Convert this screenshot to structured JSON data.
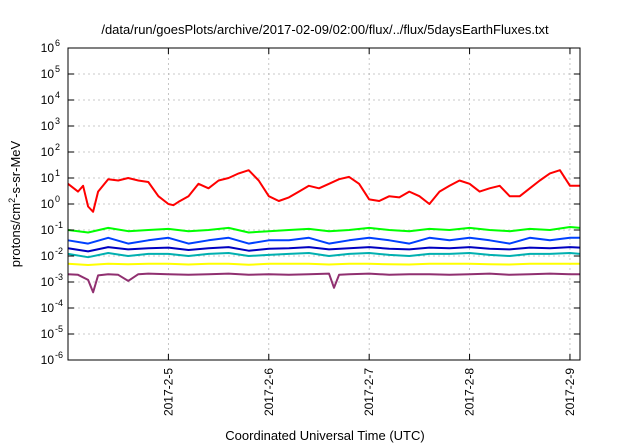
{
  "chart_data": {
    "type": "line",
    "title": "/data/run/goesPlots/archive/2017-02-09/02:00/flux/../flux/5daysEarthFluxes.txt",
    "xlabel": "Coordinated Universal Time (UTC)",
    "ylabel": "protons/cm²-s-sr-MeV",
    "y_scale": "log",
    "ylim": [
      1e-06,
      1000000.0
    ],
    "xlim": [
      4.0,
      9.1
    ],
    "grid": true,
    "legend": "none",
    "y_ticks": [
      {
        "value": 1e-06,
        "base": "10",
        "exp": "-6"
      },
      {
        "value": 1e-05,
        "base": "10",
        "exp": "-5"
      },
      {
        "value": 0.0001,
        "base": "10",
        "exp": "-4"
      },
      {
        "value": 0.001,
        "base": "10",
        "exp": "-3"
      },
      {
        "value": 0.01,
        "base": "10",
        "exp": "-2"
      },
      {
        "value": 0.1,
        "base": "10",
        "exp": "-1"
      },
      {
        "value": 1.0,
        "base": "10",
        "exp": "0"
      },
      {
        "value": 10.0,
        "base": "10",
        "exp": "1"
      },
      {
        "value": 100.0,
        "base": "10",
        "exp": "2"
      },
      {
        "value": 1000.0,
        "base": "10",
        "exp": "3"
      },
      {
        "value": 10000.0,
        "base": "10",
        "exp": "4"
      },
      {
        "value": 100000.0,
        "base": "10",
        "exp": "5"
      },
      {
        "value": 1000000.0,
        "base": "10",
        "exp": "6"
      }
    ],
    "x_ticks": [
      {
        "value": 5,
        "label": "2017-2-5"
      },
      {
        "value": 6,
        "label": "2017-2-6"
      },
      {
        "value": 7,
        "label": "2017-2-7"
      },
      {
        "value": 8,
        "label": "2017-2-8"
      },
      {
        "value": 9,
        "label": "2017-2-9"
      }
    ],
    "series": [
      {
        "color": "#ff0000",
        "x": [
          4.0,
          4.1,
          4.15,
          4.2,
          4.25,
          4.3,
          4.4,
          4.5,
          4.6,
          4.7,
          4.8,
          4.9,
          5.0,
          5.05,
          5.1,
          5.2,
          5.3,
          5.4,
          5.5,
          5.6,
          5.7,
          5.8,
          5.9,
          6.0,
          6.1,
          6.2,
          6.3,
          6.4,
          6.5,
          6.6,
          6.7,
          6.8,
          6.9,
          7.0,
          7.1,
          7.2,
          7.3,
          7.4,
          7.5,
          7.6,
          7.7,
          7.8,
          7.9,
          8.0,
          8.1,
          8.2,
          8.3,
          8.4,
          8.5,
          8.6,
          8.7,
          8.8,
          8.9,
          9.0,
          9.1
        ],
        "y": [
          6,
          3,
          5,
          0.8,
          0.5,
          3,
          9,
          8,
          10,
          8,
          7,
          2,
          1,
          0.9,
          1.2,
          2,
          6,
          4,
          8,
          10,
          15,
          20,
          8,
          2,
          1.3,
          1.8,
          3,
          5,
          4,
          6,
          9,
          11,
          6,
          1.5,
          1.3,
          2,
          1.8,
          3,
          2,
          1,
          3,
          5,
          8,
          6,
          3,
          4,
          5,
          2,
          2,
          4,
          8,
          15,
          20,
          5,
          5
        ]
      },
      {
        "color": "#00ff00",
        "x": [
          4.0,
          4.2,
          4.4,
          4.6,
          4.8,
          5.0,
          5.2,
          5.4,
          5.6,
          5.8,
          6.0,
          6.2,
          6.4,
          6.6,
          6.8,
          7.0,
          7.2,
          7.4,
          7.6,
          7.8,
          8.0,
          8.2,
          8.4,
          8.6,
          8.8,
          9.0,
          9.1
        ],
        "y": [
          0.1,
          0.08,
          0.12,
          0.09,
          0.1,
          0.11,
          0.09,
          0.1,
          0.12,
          0.08,
          0.09,
          0.1,
          0.11,
          0.09,
          0.1,
          0.12,
          0.1,
          0.09,
          0.11,
          0.1,
          0.12,
          0.1,
          0.09,
          0.11,
          0.1,
          0.13,
          0.12
        ]
      },
      {
        "color": "#0040ff",
        "x": [
          4.0,
          4.2,
          4.4,
          4.6,
          4.8,
          5.0,
          5.2,
          5.4,
          5.6,
          5.8,
          6.0,
          6.2,
          6.4,
          6.6,
          6.8,
          7.0,
          7.2,
          7.4,
          7.6,
          7.8,
          8.0,
          8.2,
          8.4,
          8.6,
          8.8,
          9.0,
          9.1
        ],
        "y": [
          0.04,
          0.03,
          0.05,
          0.03,
          0.04,
          0.05,
          0.03,
          0.04,
          0.05,
          0.03,
          0.04,
          0.04,
          0.05,
          0.03,
          0.04,
          0.05,
          0.04,
          0.03,
          0.05,
          0.04,
          0.05,
          0.04,
          0.03,
          0.05,
          0.04,
          0.05,
          0.05
        ]
      },
      {
        "color": "#0000c0",
        "x": [
          4.0,
          4.2,
          4.4,
          4.6,
          4.8,
          5.0,
          5.2,
          5.4,
          5.6,
          5.8,
          6.0,
          6.2,
          6.4,
          6.6,
          6.8,
          7.0,
          7.2,
          7.4,
          7.6,
          7.8,
          8.0,
          8.2,
          8.4,
          8.6,
          8.8,
          9.0,
          9.1
        ],
        "y": [
          0.02,
          0.015,
          0.022,
          0.018,
          0.02,
          0.021,
          0.017,
          0.02,
          0.022,
          0.016,
          0.019,
          0.02,
          0.022,
          0.018,
          0.02,
          0.022,
          0.019,
          0.018,
          0.021,
          0.02,
          0.022,
          0.019,
          0.018,
          0.021,
          0.02,
          0.022,
          0.021
        ]
      },
      {
        "color": "#00b0b0",
        "x": [
          4.0,
          4.2,
          4.4,
          4.6,
          4.8,
          5.0,
          5.2,
          5.4,
          5.6,
          5.8,
          6.0,
          6.2,
          6.4,
          6.6,
          6.8,
          7.0,
          7.2,
          7.4,
          7.6,
          7.8,
          8.0,
          8.2,
          8.4,
          8.6,
          8.8,
          9.0,
          9.1
        ],
        "y": [
          0.012,
          0.009,
          0.013,
          0.01,
          0.012,
          0.012,
          0.01,
          0.012,
          0.013,
          0.01,
          0.011,
          0.012,
          0.013,
          0.01,
          0.012,
          0.013,
          0.011,
          0.01,
          0.012,
          0.012,
          0.013,
          0.011,
          0.01,
          0.012,
          0.012,
          0.013,
          0.012
        ]
      },
      {
        "color": "#ffff00",
        "x": [
          4.0,
          4.2,
          4.4,
          4.6,
          4.8,
          5.0,
          5.2,
          5.4,
          5.6,
          5.8,
          6.0,
          6.2,
          6.4,
          6.6,
          6.8,
          7.0,
          7.2,
          7.4,
          7.6,
          7.8,
          8.0,
          8.2,
          8.4,
          8.6,
          8.8,
          9.0,
          9.1
        ],
        "y": [
          0.005,
          0.0045,
          0.005,
          0.0048,
          0.005,
          0.005,
          0.0047,
          0.005,
          0.005,
          0.0046,
          0.005,
          0.005,
          0.005,
          0.0047,
          0.005,
          0.005,
          0.0048,
          0.0047,
          0.005,
          0.005,
          0.005,
          0.0048,
          0.0047,
          0.005,
          0.005,
          0.005,
          0.005
        ]
      },
      {
        "color": "#903070",
        "x": [
          4.0,
          4.1,
          4.2,
          4.25,
          4.3,
          4.4,
          4.5,
          4.6,
          4.7,
          4.8,
          5.0,
          5.2,
          5.4,
          5.6,
          5.8,
          6.0,
          6.2,
          6.4,
          6.6,
          6.65,
          6.7,
          6.8,
          7.0,
          7.2,
          7.4,
          7.6,
          7.8,
          8.0,
          8.2,
          8.4,
          8.6,
          8.8,
          9.0,
          9.1
        ],
        "y": [
          0.002,
          0.0019,
          0.0012,
          0.0004,
          0.0018,
          0.002,
          0.0019,
          0.0011,
          0.002,
          0.0021,
          0.002,
          0.0019,
          0.002,
          0.0021,
          0.0019,
          0.002,
          0.0019,
          0.002,
          0.0021,
          0.0006,
          0.0019,
          0.002,
          0.0021,
          0.0019,
          0.002,
          0.002,
          0.0019,
          0.002,
          0.0021,
          0.0019,
          0.002,
          0.0021,
          0.002,
          0.002
        ]
      }
    ]
  }
}
